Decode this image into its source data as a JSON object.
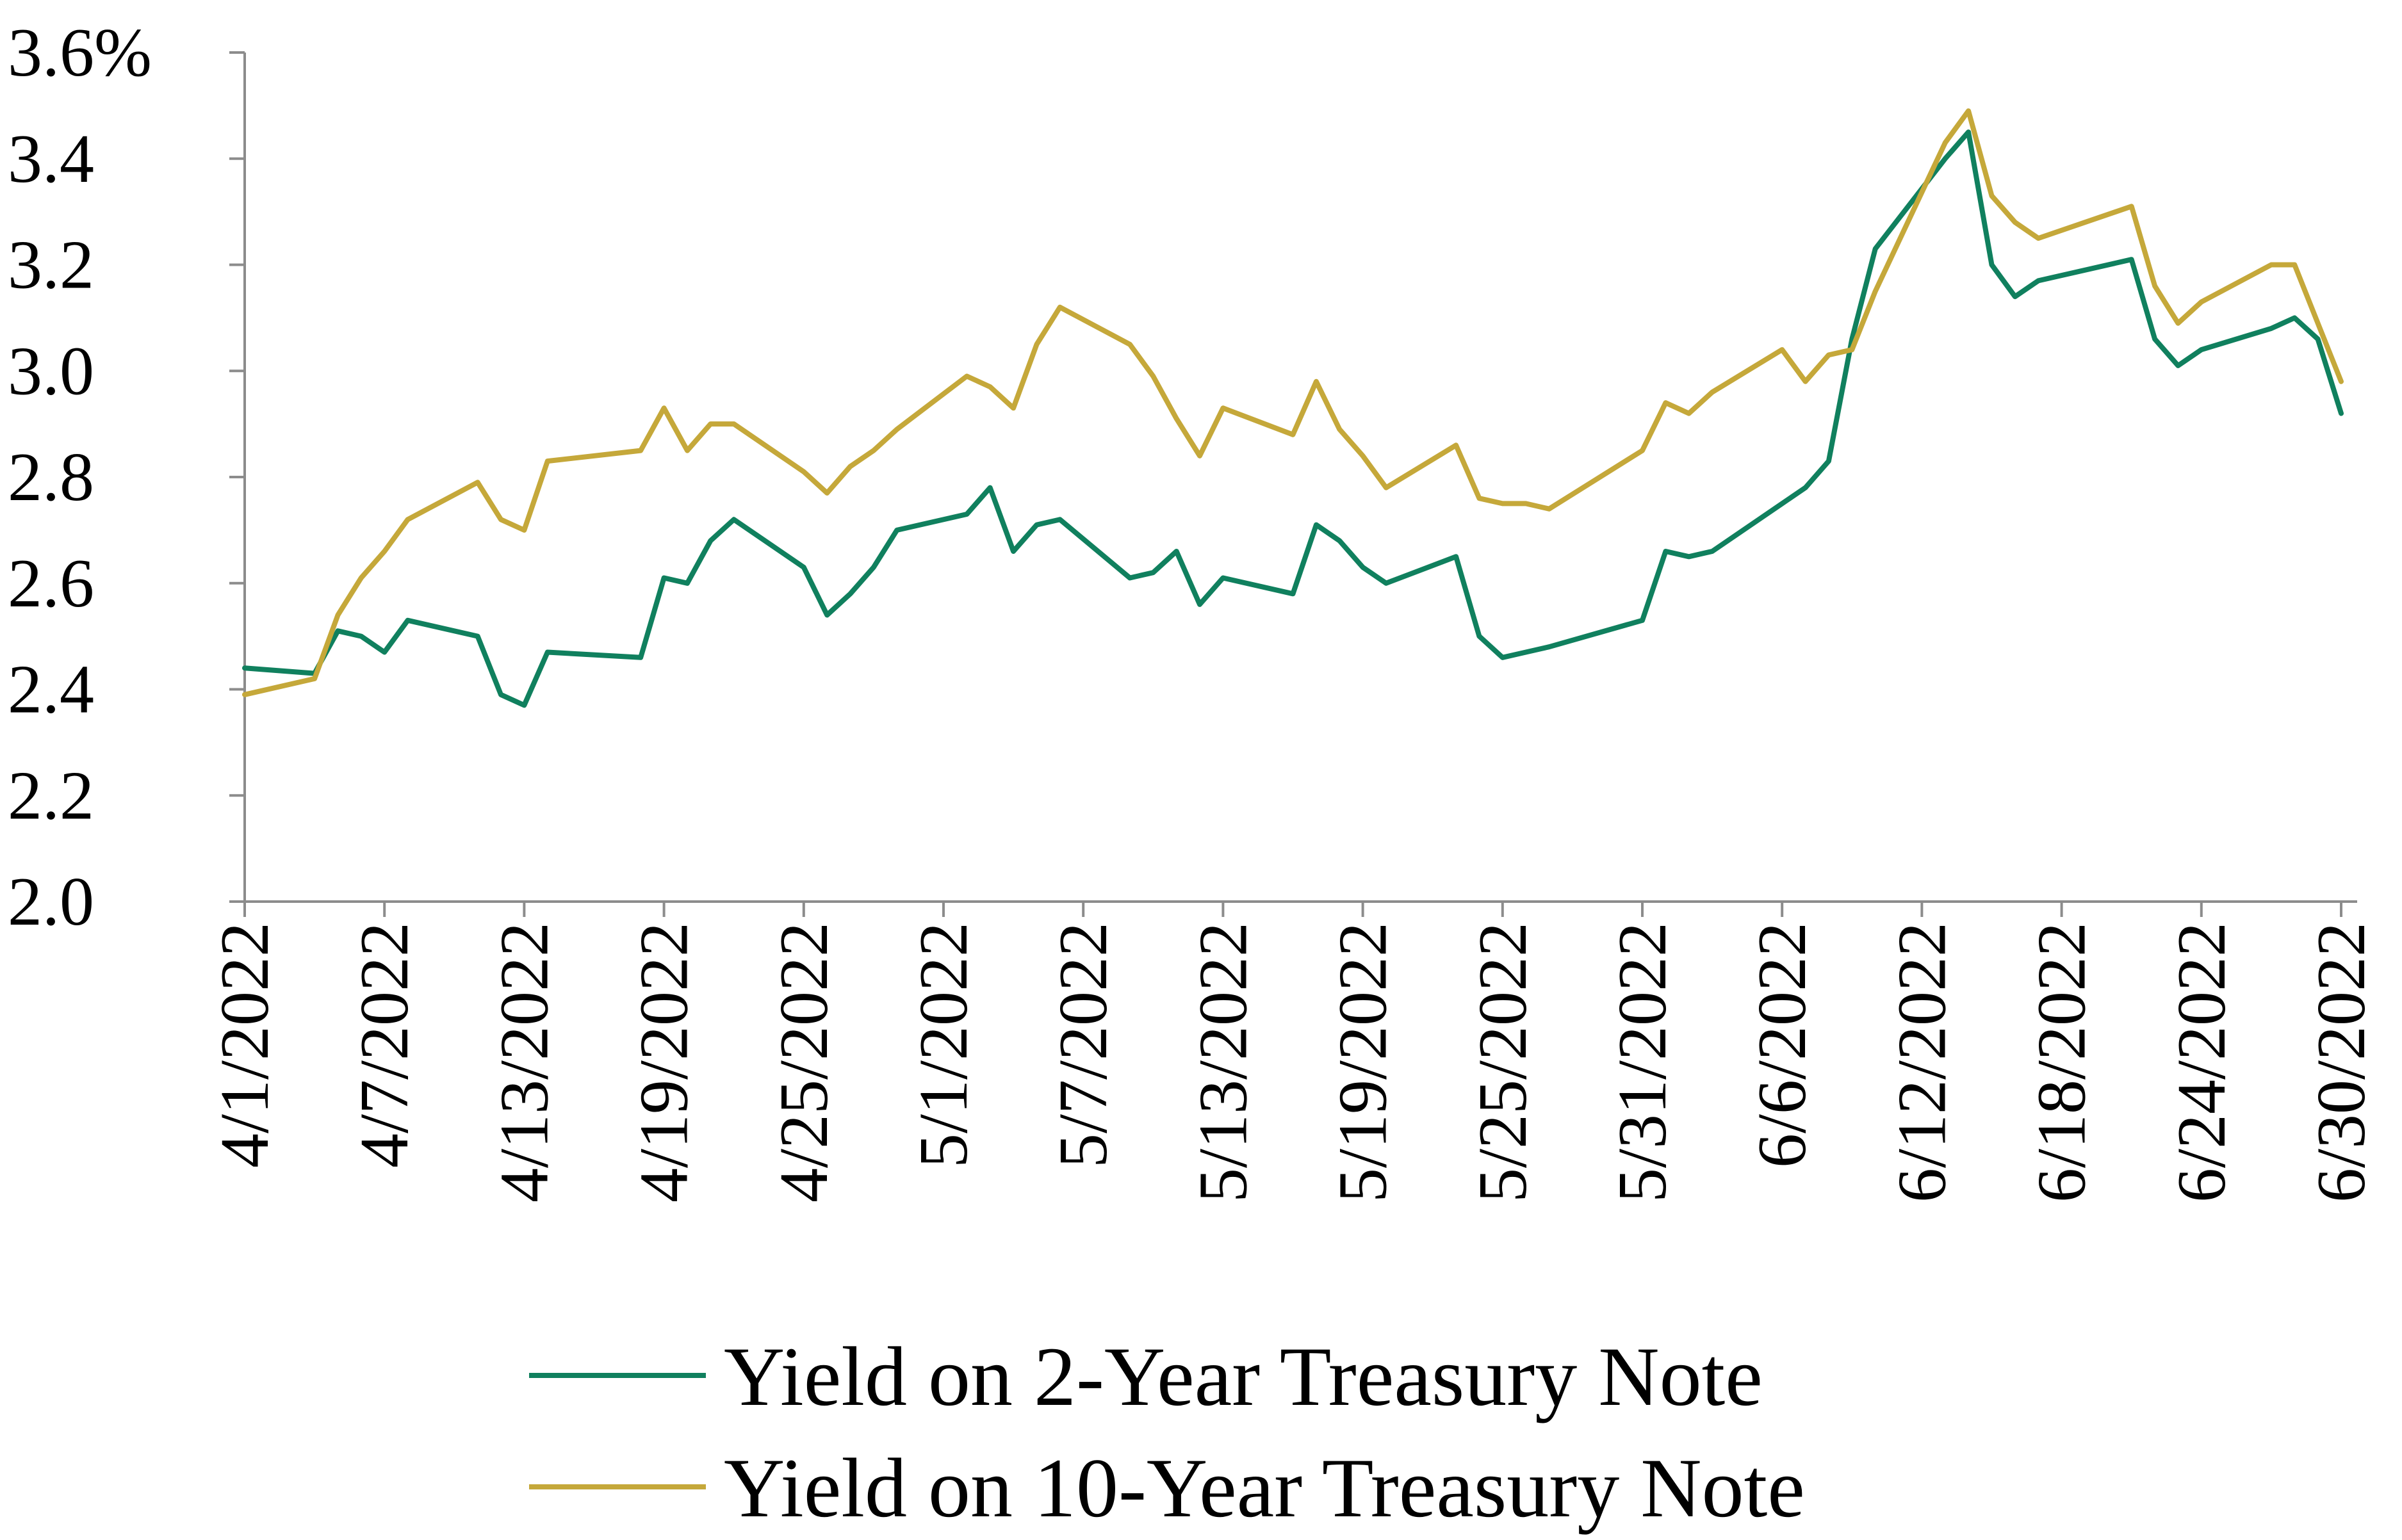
{
  "chart_data": {
    "type": "line",
    "title": "",
    "xlabel": "",
    "ylabel": "",
    "x_range": [
      "4/1/2022",
      "6/30/2022"
    ],
    "ylim": [
      2.0,
      3.6
    ],
    "y_ticks": [
      {
        "value": 2.0,
        "label": "2.0"
      },
      {
        "value": 2.2,
        "label": "2.2"
      },
      {
        "value": 2.4,
        "label": "2.4"
      },
      {
        "value": 2.6,
        "label": "2.6"
      },
      {
        "value": 2.8,
        "label": "2.8"
      },
      {
        "value": 3.0,
        "label": "3.0"
      },
      {
        "value": 3.2,
        "label": "3.2"
      },
      {
        "value": 3.4,
        "label": "3.4"
      },
      {
        "value": 3.6,
        "label": "3.6%"
      }
    ],
    "x_ticks": [
      "4/1/2022",
      "4/7/2022",
      "4/13/2022",
      "4/19/2022",
      "4/25/2022",
      "5/1/2022",
      "5/7/2022",
      "5/13/2022",
      "5/19/2022",
      "5/25/2022",
      "5/31/2022",
      "6/6/2022",
      "6/12/2022",
      "6/18/2022",
      "6/24/2022",
      "6/30/2022"
    ],
    "grid": false,
    "legend": "bottom",
    "series": [
      {
        "name": "Yield on 2-Year Treasury Note",
        "color": "#10805E",
        "dates": [
          "4/1/2022",
          "4/4/2022",
          "4/5/2022",
          "4/6/2022",
          "4/7/2022",
          "4/8/2022",
          "4/11/2022",
          "4/12/2022",
          "4/13/2022",
          "4/14/2022",
          "4/18/2022",
          "4/19/2022",
          "4/20/2022",
          "4/21/2022",
          "4/22/2022",
          "4/25/2022",
          "4/26/2022",
          "4/27/2022",
          "4/28/2022",
          "4/29/2022",
          "5/2/2022",
          "5/3/2022",
          "5/4/2022",
          "5/5/2022",
          "5/6/2022",
          "5/9/2022",
          "5/10/2022",
          "5/11/2022",
          "5/12/2022",
          "5/13/2022",
          "5/16/2022",
          "5/17/2022",
          "5/18/2022",
          "5/19/2022",
          "5/20/2022",
          "5/23/2022",
          "5/24/2022",
          "5/25/2022",
          "5/26/2022",
          "5/27/2022",
          "5/31/2022",
          "6/1/2022",
          "6/2/2022",
          "6/3/2022",
          "6/6/2022",
          "6/7/2022",
          "6/8/2022",
          "6/9/2022",
          "6/10/2022",
          "6/13/2022",
          "6/14/2022",
          "6/15/2022",
          "6/16/2022",
          "6/17/2022",
          "6/21/2022",
          "6/22/2022",
          "6/23/2022",
          "6/24/2022",
          "6/27/2022",
          "6/28/2022",
          "6/29/2022",
          "6/30/2022"
        ],
        "values": [
          2.44,
          2.43,
          2.51,
          2.5,
          2.47,
          2.53,
          2.5,
          2.39,
          2.37,
          2.47,
          2.46,
          2.61,
          2.6,
          2.68,
          2.72,
          2.63,
          2.54,
          2.58,
          2.63,
          2.7,
          2.73,
          2.78,
          2.66,
          2.71,
          2.72,
          2.61,
          2.62,
          2.66,
          2.56,
          2.61,
          2.58,
          2.71,
          2.68,
          2.63,
          2.6,
          2.65,
          2.5,
          2.46,
          2.47,
          2.48,
          2.53,
          2.66,
          2.65,
          2.66,
          2.75,
          2.78,
          2.83,
          3.06,
          3.23,
          3.4,
          3.45,
          3.2,
          3.14,
          3.17,
          3.21,
          3.06,
          3.01,
          3.04,
          3.08,
          3.1,
          3.06,
          2.92
        ]
      },
      {
        "name": "Yield on 10-Year Treasury Note",
        "color": "#C5A83A",
        "dates": [
          "4/1/2022",
          "4/4/2022",
          "4/5/2022",
          "4/6/2022",
          "4/7/2022",
          "4/8/2022",
          "4/11/2022",
          "4/12/2022",
          "4/13/2022",
          "4/14/2022",
          "4/18/2022",
          "4/19/2022",
          "4/20/2022",
          "4/21/2022",
          "4/22/2022",
          "4/25/2022",
          "4/26/2022",
          "4/27/2022",
          "4/28/2022",
          "4/29/2022",
          "5/2/2022",
          "5/3/2022",
          "5/4/2022",
          "5/5/2022",
          "5/6/2022",
          "5/9/2022",
          "5/10/2022",
          "5/11/2022",
          "5/12/2022",
          "5/13/2022",
          "5/16/2022",
          "5/17/2022",
          "5/18/2022",
          "5/19/2022",
          "5/20/2022",
          "5/23/2022",
          "5/24/2022",
          "5/25/2022",
          "5/26/2022",
          "5/27/2022",
          "5/31/2022",
          "6/1/2022",
          "6/2/2022",
          "6/3/2022",
          "6/6/2022",
          "6/7/2022",
          "6/8/2022",
          "6/9/2022",
          "6/10/2022",
          "6/13/2022",
          "6/14/2022",
          "6/15/2022",
          "6/16/2022",
          "6/17/2022",
          "6/21/2022",
          "6/22/2022",
          "6/23/2022",
          "6/24/2022",
          "6/27/2022",
          "6/28/2022",
          "6/29/2022",
          "6/30/2022"
        ],
        "values": [
          2.39,
          2.42,
          2.54,
          2.61,
          2.66,
          2.72,
          2.79,
          2.72,
          2.7,
          2.83,
          2.85,
          2.93,
          2.85,
          2.9,
          2.9,
          2.81,
          2.77,
          2.82,
          2.85,
          2.89,
          2.99,
          2.97,
          2.93,
          3.05,
          3.12,
          3.05,
          2.99,
          2.91,
          2.84,
          2.93,
          2.88,
          2.98,
          2.89,
          2.84,
          2.78,
          2.86,
          2.76,
          2.75,
          2.75,
          2.74,
          2.85,
          2.94,
          2.92,
          2.96,
          3.04,
          2.98,
          3.03,
          3.04,
          3.15,
          3.43,
          3.49,
          3.33,
          3.28,
          3.25,
          3.31,
          3.16,
          3.09,
          3.13,
          3.2,
          3.2,
          3.09,
          2.98
        ]
      }
    ]
  }
}
